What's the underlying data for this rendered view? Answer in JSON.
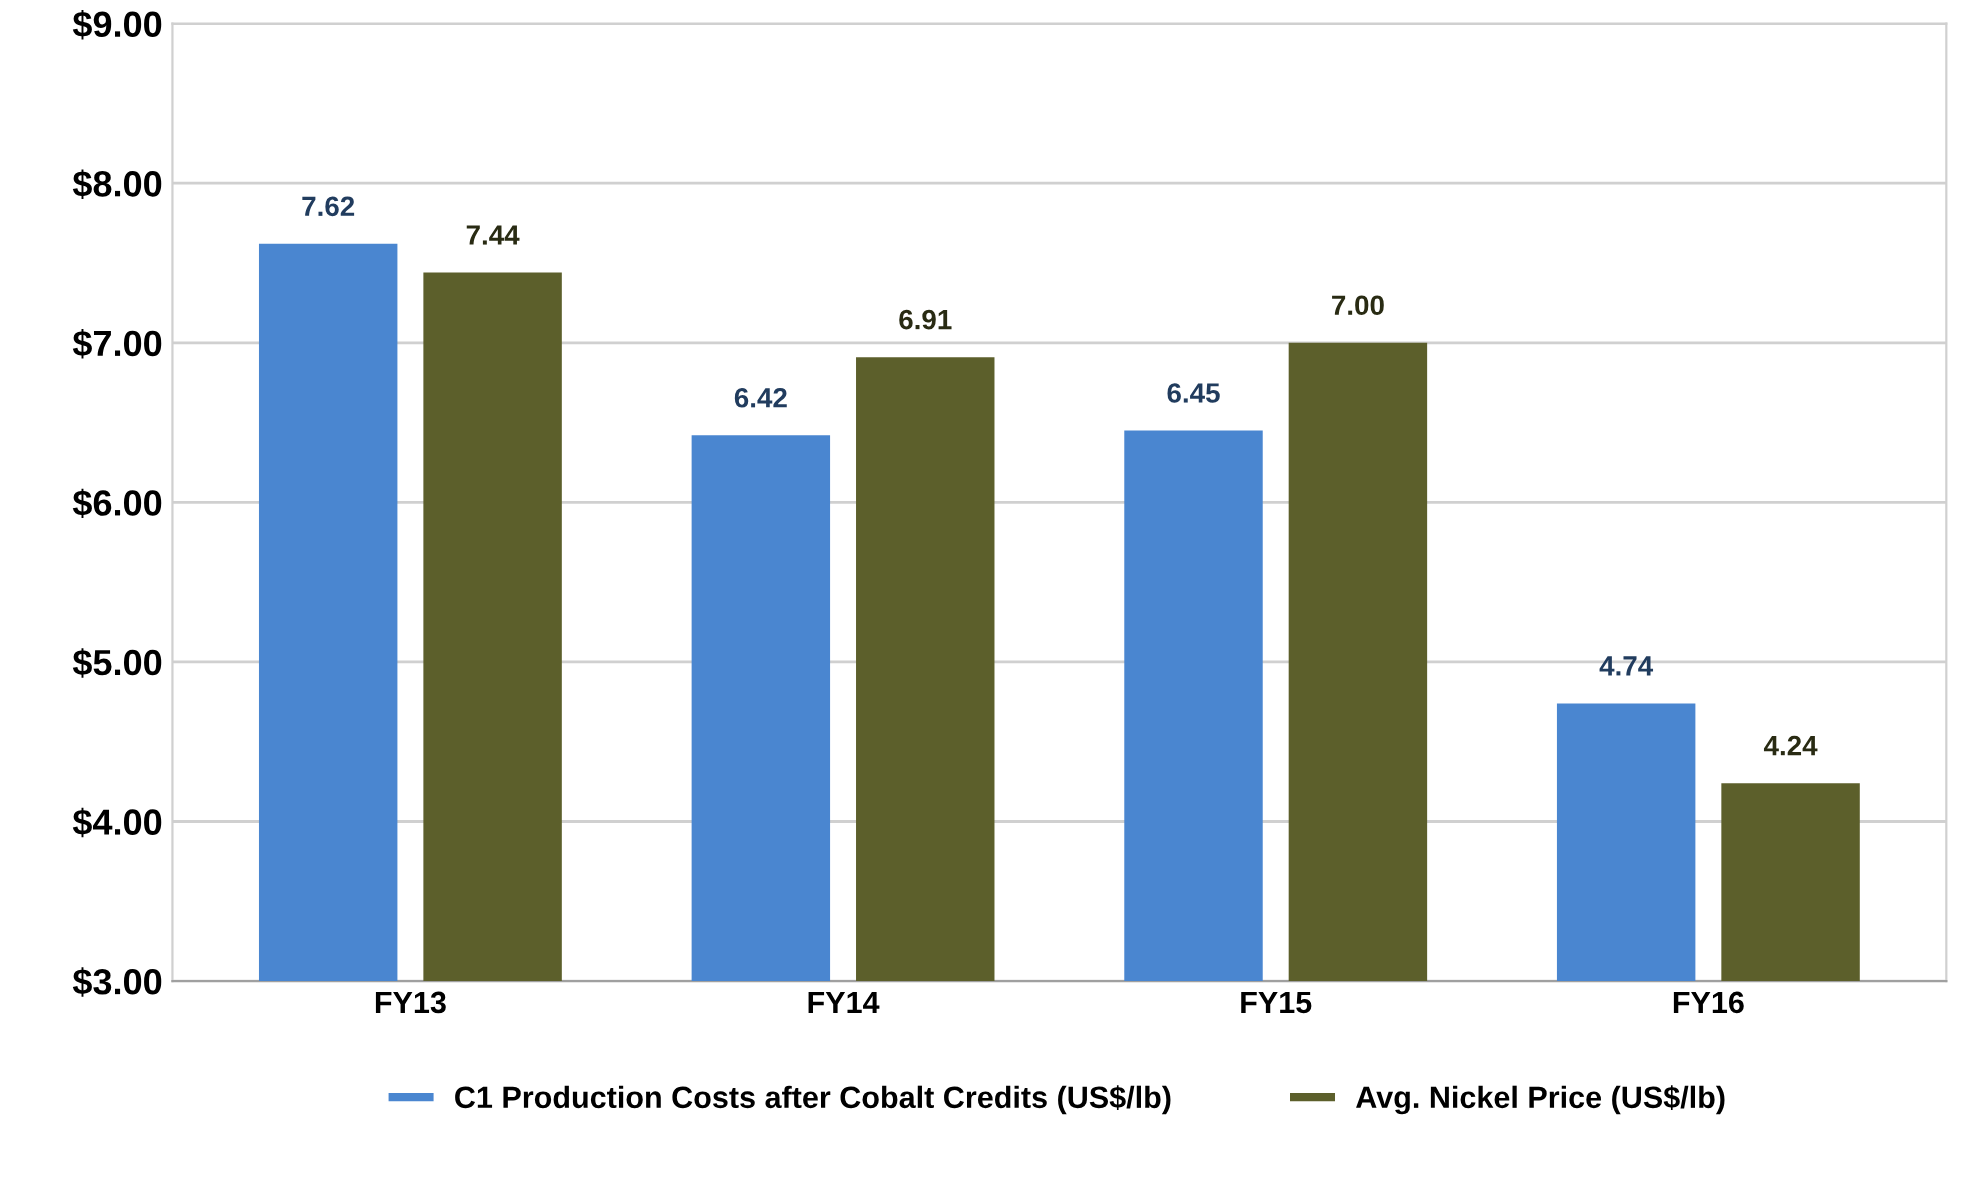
{
  "chart_data": {
    "type": "bar",
    "categories": [
      "FY13",
      "FY14",
      "FY15",
      "FY16"
    ],
    "series": [
      {
        "name": "C1 Production Costs after Cobalt Credits (US$/lb)",
        "color": "#4a86d0",
        "values": [
          7.62,
          6.42,
          6.45,
          4.74
        ],
        "value_labels": [
          "7.62",
          "6.42",
          "6.45",
          "4.74"
        ]
      },
      {
        "name": "Avg. Nickel Price (US$/lb)",
        "color": "#5c5f2b",
        "values": [
          7.44,
          6.91,
          7.0,
          4.24
        ],
        "value_labels": [
          "7.44",
          "6.91",
          "7.00",
          "4.24"
        ]
      }
    ],
    "ylim": [
      3,
      9
    ],
    "yticks": [
      {
        "value": 3,
        "label": "$3.00"
      },
      {
        "value": 4,
        "label": "$4.00"
      },
      {
        "value": 5,
        "label": "$5.00"
      },
      {
        "value": 6,
        "label": "$6.00"
      },
      {
        "value": 7,
        "label": "$7.00"
      },
      {
        "value": 8,
        "label": "$8.00"
      },
      {
        "value": 9,
        "label": "$9.00"
      }
    ],
    "grid": "y",
    "legend": "bottom"
  }
}
